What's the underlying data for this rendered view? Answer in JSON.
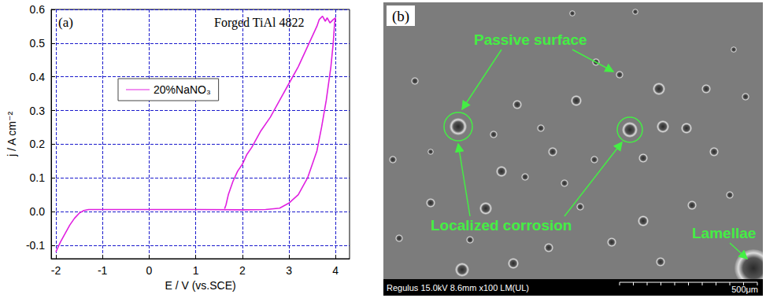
{
  "chart_data": {
    "type": "line",
    "annotations": [
      "(a)",
      "Forged TiAl 4822"
    ],
    "x_label": "E / V (vs.SCE)",
    "y_label": "j / A cm⁻²",
    "x": [
      -2.0,
      -1.9,
      -1.8,
      -1.7,
      -1.6,
      -1.5,
      -1.4,
      -1.3,
      -1.0,
      0.0,
      1.0,
      2.0,
      2.5,
      2.8,
      3.0,
      3.2,
      3.4,
      3.6,
      3.7,
      3.8,
      3.9,
      3.95,
      3.98,
      4.0,
      3.95,
      3.88,
      3.82,
      3.78,
      3.72,
      3.65,
      3.6,
      3.4,
      3.2,
      3.0,
      2.8,
      2.6,
      2.4,
      2.2,
      2.1,
      2.0,
      1.9,
      1.8,
      1.7,
      1.65,
      1.62
    ],
    "series": [
      {
        "name": "20%NaNO₃",
        "color": "#e020e0",
        "values": [
          -0.12,
          -0.09,
          -0.065,
          -0.04,
          -0.02,
          -0.005,
          0.003,
          0.006,
          0.006,
          0.006,
          0.006,
          0.005,
          0.006,
          0.01,
          0.025,
          0.05,
          0.1,
          0.18,
          0.25,
          0.33,
          0.43,
          0.5,
          0.56,
          0.575,
          0.57,
          0.56,
          0.575,
          0.565,
          0.58,
          0.57,
          0.55,
          0.49,
          0.43,
          0.38,
          0.33,
          0.28,
          0.24,
          0.19,
          0.17,
          0.14,
          0.12,
          0.09,
          0.05,
          0.02,
          0.008
        ]
      }
    ],
    "xlim": [
      -2.1,
      4.3
    ],
    "xticks": [
      -2,
      -1,
      0,
      1,
      2,
      3,
      4
    ],
    "ylim": [
      -0.14,
      0.6
    ],
    "yticks": [
      -0.1,
      {
        "value": 0,
        "label": "0.0"
      },
      0.1,
      0.2,
      0.3,
      0.4,
      0.5,
      0.6
    ],
    "grid": true,
    "legend": "upper left"
  },
  "panel_b": {
    "label": "(b)",
    "annotations": [
      "Passive surface",
      "Localized corrosion",
      "Lamellae"
    ],
    "footer": "Regulus 15.0kV 8.6mm x100 LM(UL)",
    "scale_bar": "500μm"
  }
}
